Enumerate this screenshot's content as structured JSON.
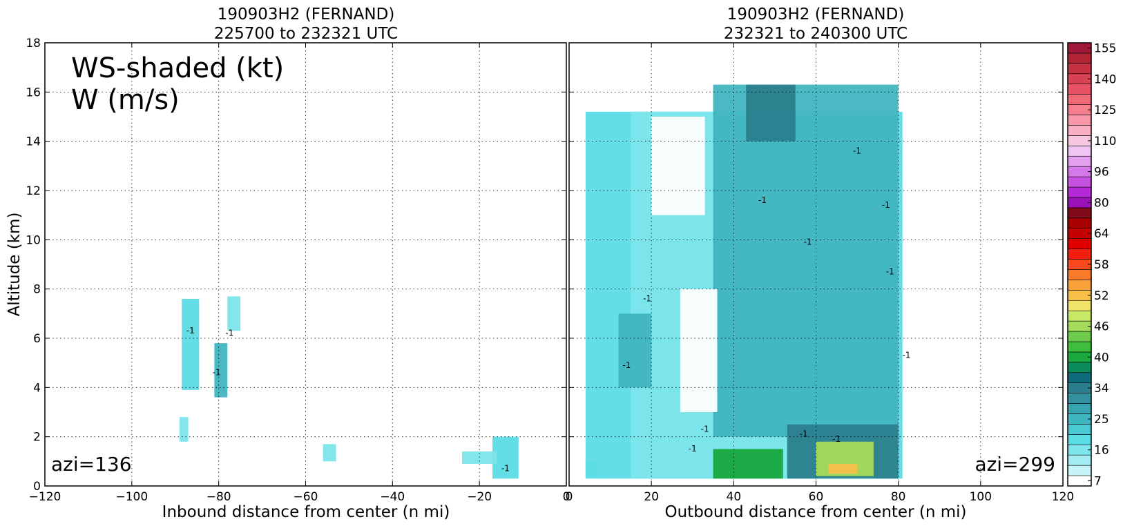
{
  "chart_data": [
    {
      "type": "heatmap",
      "title_line1": "190903H2 (FERNAND)",
      "title_line2": "225700 to 232321 UTC",
      "xlabel": "Inbound distance from center (n mi)",
      "ylabel": "Altitude (km)",
      "xlim": [
        -120,
        0
      ],
      "ylim": [
        0,
        18
      ],
      "xticks": [
        -120,
        -100,
        -80,
        -60,
        -40,
        -20,
        0
      ],
      "xtick_labels": [
        "−120",
        "−100",
        "−80",
        "−60",
        "−40",
        "−20",
        "0"
      ],
      "yticks": [
        0,
        2,
        4,
        6,
        8,
        10,
        12,
        14,
        16,
        18
      ],
      "ytick_labels": [
        "0",
        "2",
        "4",
        "6",
        "8",
        "10",
        "12",
        "14",
        "16",
        "18"
      ],
      "grid": true,
      "legend_line1": "WS-shaded (kt)",
      "legend_line2": "W (m/s)",
      "annotation": "azi=136",
      "regions": [
        {
          "x": [
            -88.5,
            -84.5
          ],
          "y": [
            3.9,
            7.6
          ],
          "ws": 20
        },
        {
          "x": [
            -81,
            -78
          ],
          "y": [
            3.6,
            5.8
          ],
          "ws": 25
        },
        {
          "x": [
            -78,
            -75
          ],
          "y": [
            6.3,
            7.7
          ],
          "ws": 15
        },
        {
          "x": [
            -89,
            -87
          ],
          "y": [
            1.8,
            2.8
          ],
          "ws": 17
        },
        {
          "x": [
            -56,
            -53
          ],
          "y": [
            1.0,
            1.7
          ],
          "ws": 16
        },
        {
          "x": [
            -17,
            -11
          ],
          "y": [
            0.3,
            2.0
          ],
          "ws": 20
        },
        {
          "x": [
            -24,
            -16
          ],
          "y": [
            0.9,
            1.4
          ],
          "ws": 16
        }
      ],
      "contour_labels": [
        {
          "x": -86.5,
          "y": 6.2,
          "text": "-1"
        },
        {
          "x": -80.5,
          "y": 4.5,
          "text": "-1"
        },
        {
          "x": -77.5,
          "y": 6.1,
          "text": "-1"
        },
        {
          "x": -14,
          "y": 0.6,
          "text": "-1"
        }
      ]
    },
    {
      "type": "heatmap",
      "title_line1": "190903H2 (FERNAND)",
      "title_line2": "232321 to 240300 UTC",
      "xlabel": "Outbound distance from center (n mi)",
      "xlim": [
        0,
        120
      ],
      "ylim": [
        0,
        18
      ],
      "xticks": [
        0,
        20,
        40,
        60,
        80,
        100,
        120
      ],
      "xtick_labels": [
        "0",
        "20",
        "40",
        "60",
        "80",
        "100",
        "120"
      ],
      "grid": true,
      "annotation": "azi=299",
      "regions": [
        {
          "x": [
            4,
            7
          ],
          "y": [
            0.4,
            1.0
          ],
          "ws": 20
        },
        {
          "x": [
            4,
            81
          ],
          "y": [
            0.3,
            15.2
          ],
          "ws": 18
        },
        {
          "x": [
            15,
            80
          ],
          "y": [
            0.3,
            15.2
          ],
          "ws": 16
        },
        {
          "x": [
            35,
            80
          ],
          "y": [
            2,
            16.3
          ],
          "ws": 24
        },
        {
          "x": [
            12,
            20
          ],
          "y": [
            4,
            7
          ],
          "ws": 25
        },
        {
          "x": [
            20,
            33
          ],
          "y": [
            11,
            15
          ],
          "ws": 7
        },
        {
          "x": [
            27,
            36
          ],
          "y": [
            3,
            8
          ],
          "ws": 7
        },
        {
          "x": [
            43,
            55
          ],
          "y": [
            14,
            16.3
          ],
          "ws": 34
        },
        {
          "x": [
            53,
            80
          ],
          "y": [
            0.3,
            2.5
          ],
          "ws": 34
        },
        {
          "x": [
            35,
            52
          ],
          "y": [
            0.3,
            1.5
          ],
          "ws": 40
        },
        {
          "x": [
            60,
            74
          ],
          "y": [
            0.4,
            1.8
          ],
          "ws": 46
        },
        {
          "x": [
            63,
            70
          ],
          "y": [
            0.5,
            0.9
          ],
          "ws": 52
        }
      ],
      "contour_labels": [
        {
          "x": 14,
          "y": 4.8,
          "text": "-1"
        },
        {
          "x": 19,
          "y": 7.5,
          "text": "-1"
        },
        {
          "x": 47,
          "y": 11.5,
          "text": "-1"
        },
        {
          "x": 58,
          "y": 9.8,
          "text": "-1"
        },
        {
          "x": 70,
          "y": 13.5,
          "text": "-1"
        },
        {
          "x": 77,
          "y": 11.3,
          "text": "-1"
        },
        {
          "x": 78,
          "y": 8.6,
          "text": "-1"
        },
        {
          "x": 57,
          "y": 2.0,
          "text": "-1"
        },
        {
          "x": 65,
          "y": 1.8,
          "text": "-1"
        },
        {
          "x": 30,
          "y": 1.4,
          "text": "-1"
        },
        {
          "x": 33,
          "y": 2.2,
          "text": "-1"
        },
        {
          "x": 82,
          "y": 5.2,
          "text": "-1"
        }
      ]
    }
  ],
  "colorbar": {
    "ticks": [
      "7",
      "16",
      "25",
      "34",
      "40",
      "46",
      "52",
      "58",
      "64",
      "80",
      "96",
      "110",
      "125",
      "140",
      "155"
    ],
    "colors": [
      "#ffffff",
      "#c9f4f7",
      "#a3edf2",
      "#7de5ec",
      "#5cdce5",
      "#4ccad4",
      "#40b5c1",
      "#3aa3b0",
      "#33909f",
      "#2b7e8d",
      "#0e6b7c",
      "#0b8a5a",
      "#18a83e",
      "#3fbd3f",
      "#6dcc4c",
      "#a6dc5c",
      "#c9e864",
      "#f0e36a",
      "#f6c04a",
      "#f9a23a",
      "#fb7a2a",
      "#f9491d",
      "#f21e10",
      "#e00000",
      "#c40000",
      "#a80000",
      "#7e0a1a",
      "#9d12b8",
      "#b52ad6",
      "#c752e2",
      "#d57aea",
      "#e3a0ef",
      "#f0c5f2",
      "#f7c7df",
      "#fab0c4",
      "#f998a8",
      "#f7808e",
      "#f16a78",
      "#e65366",
      "#d64254",
      "#c43242",
      "#b02436",
      "#a0173a"
    ]
  }
}
